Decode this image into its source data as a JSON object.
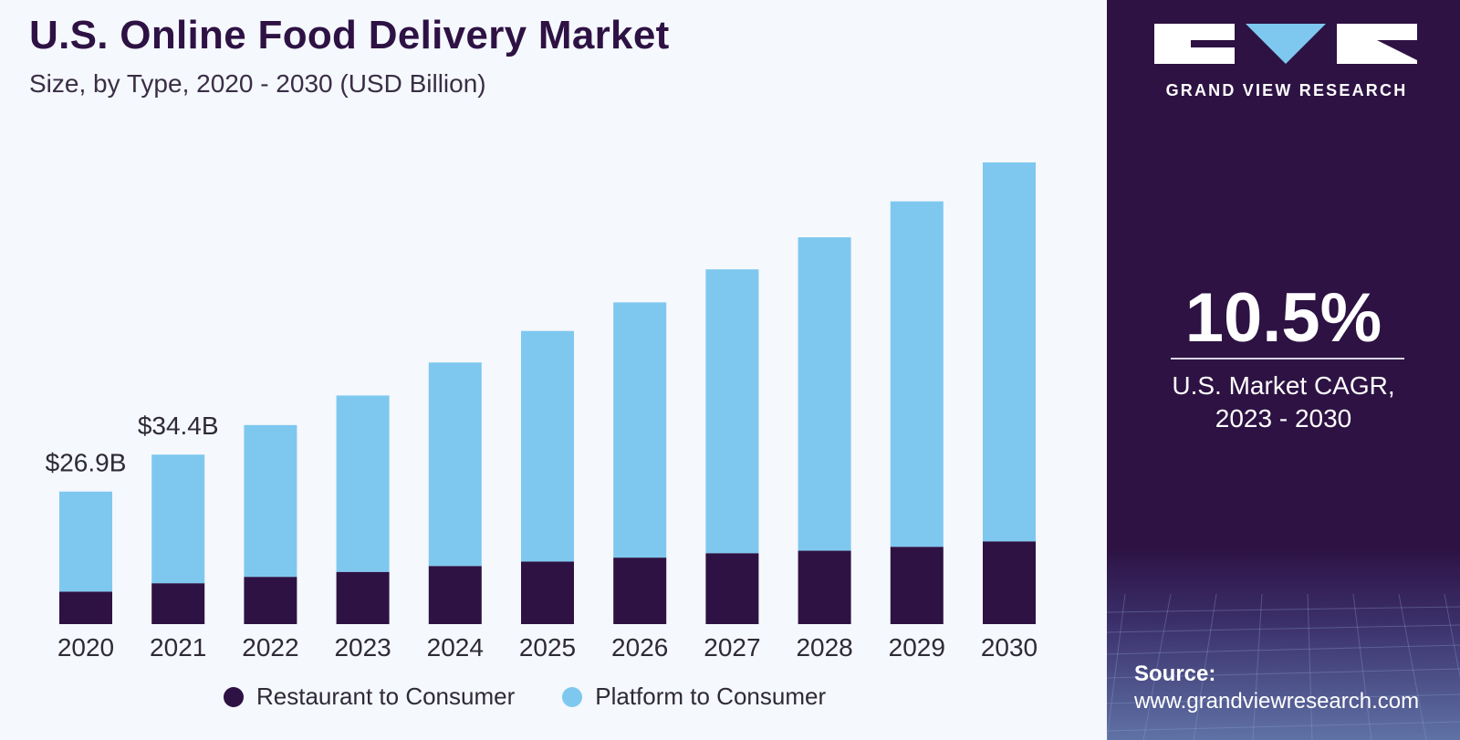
{
  "chart_data": {
    "type": "bar",
    "stacked": true,
    "title": "U.S. Online Food Delivery Market",
    "subtitle": "Size, by Type, 2020 - 2030 (USD Billion)",
    "categories": [
      "2020",
      "2021",
      "2022",
      "2023",
      "2024",
      "2025",
      "2026",
      "2027",
      "2028",
      "2029",
      "2030"
    ],
    "series": [
      {
        "name": "Restaurant to Consumer",
        "color": "#2e1244",
        "values": [
          6.6,
          8.3,
          9.6,
          10.6,
          11.8,
          12.7,
          13.5,
          14.4,
          14.9,
          15.7,
          16.8
        ]
      },
      {
        "name": "Platform to Consumer",
        "color": "#7ec8ef",
        "values": [
          20.3,
          26.1,
          30.8,
          35.8,
          41.3,
          46.8,
          51.8,
          57.6,
          63.6,
          70.1,
          76.9
        ]
      }
    ],
    "data_labels": [
      {
        "category": "2020",
        "text": "$26.9B"
      },
      {
        "category": "2021",
        "text": "$34.4B"
      }
    ],
    "ylim": [
      0,
      100
    ],
    "grid": false,
    "legend_position": "bottom"
  },
  "panel": {
    "brand_name": "GRAND VIEW RESEARCH",
    "cagr_value": "10.5%",
    "cagr_label_line1": "U.S. Market CAGR,",
    "cagr_label_line2": "2023 - 2030",
    "source_label": "Source:",
    "source_url": "www.grandviewresearch.com"
  },
  "colors": {
    "title": "#2e1244",
    "panel_bg": "#2d1243",
    "bar_dark": "#2e1244",
    "bar_light": "#7ec8ef"
  }
}
